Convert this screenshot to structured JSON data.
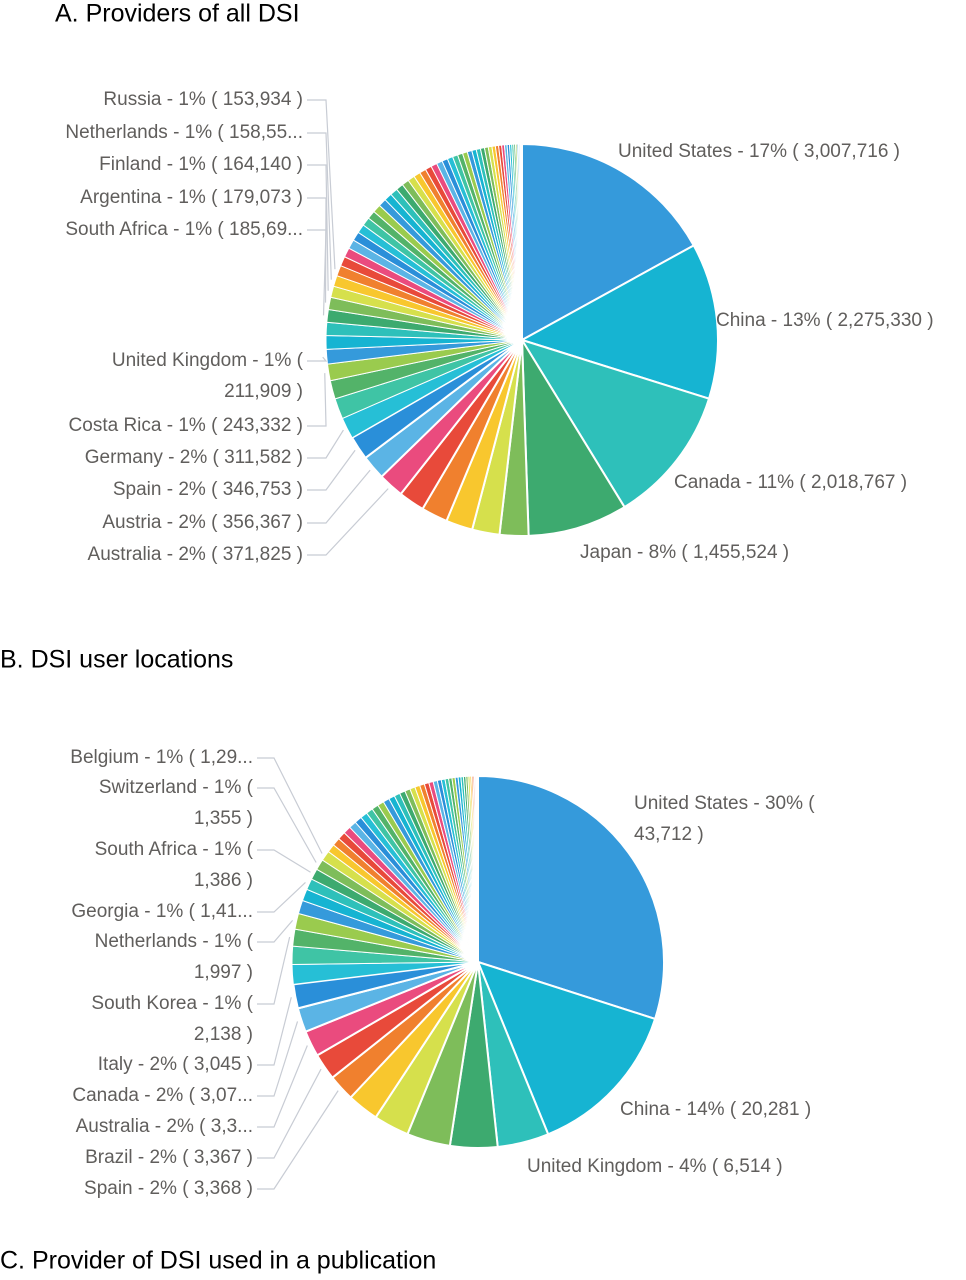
{
  "chart_data": [
    {
      "type": "pie",
      "title": "A. Providers of all DSI",
      "colors": [
        "#359ADB",
        "#16B4D2",
        "#2EC0BA",
        "#3DAA6F",
        "#7EBD5A",
        "#D6E04C",
        "#F8C72E",
        "#F0802E",
        "#E84A3A",
        "#EA4B7E",
        "#5BB4E5",
        "#2A8FD9",
        "#26BFD6",
        "#3FC4A5",
        "#53B369",
        "#9ACB4E"
      ],
      "categories": [
        "United States - 17% ( 3,007,716 )",
        "China - 13% ( 2,275,330 )",
        "Canada - 11% ( 2,018,767 )",
        "Japan - 8% ( 1,455,524 )",
        null,
        null,
        null,
        null,
        null,
        "Australia - 2% ( 371,825 )",
        "Austria - 2% ( 356,367 )",
        "Spain - 2% ( 346,753 )",
        "Germany - 2% ( 311,582 )",
        null,
        null,
        "Costa Rica - 1% ( 243,332 )",
        [
          "United Kingdom - 1% (",
          "211,909 )"
        ],
        null,
        null,
        "South Africa - 1% ( 185,69...",
        "Argentina - 1% ( 179,073 )",
        "Finland - 1% ( 164,140 )",
        "Netherlands - 1% ( 158,55...",
        "Russia - 1% ( 153,934 )",
        null,
        null,
        null,
        null,
        null,
        null,
        null,
        null,
        null,
        null,
        null,
        null,
        null,
        null,
        null,
        null,
        null,
        null,
        null,
        null,
        null,
        null,
        null,
        null,
        null,
        null,
        null,
        null,
        null,
        null,
        null,
        null,
        null,
        null,
        null,
        null,
        null,
        null,
        null,
        null,
        null,
        null,
        null,
        null,
        null
      ],
      "values": [
        3007716,
        2275330,
        2018767,
        1455524,
        420000,
        400000,
        390000,
        385000,
        380000,
        371825,
        356367,
        346753,
        311582,
        300000,
        270000,
        243332,
        211909,
        200000,
        190000,
        185690,
        179073,
        164140,
        158550,
        153934,
        140000,
        137000,
        134000,
        131000,
        128000,
        125000,
        122000,
        119000,
        116000,
        113000,
        110000,
        107000,
        104000,
        101000,
        98000,
        95000,
        92000,
        89000,
        86000,
        83000,
        80000,
        77000,
        74000,
        71000,
        68000,
        65000,
        62000,
        59000,
        56000,
        53000,
        50000,
        47000,
        44000,
        41000,
        38000,
        35000,
        32000,
        29000,
        26000,
        23000,
        20000,
        17000,
        14000,
        11000,
        8000
      ]
    },
    {
      "type": "pie",
      "title": "B. DSI user locations",
      "colors": [
        "#359ADB",
        "#16B4D2",
        "#2EC0BA",
        "#3DAA6F",
        "#7EBD5A",
        "#D6E04C",
        "#F8C72E",
        "#F0802E",
        "#E84A3A",
        "#EA4B7E",
        "#5BB4E5",
        "#2A8FD9",
        "#26BFD6",
        "#3FC4A5",
        "#53B369",
        "#9ACB4E"
      ],
      "categories": [
        [
          "United States - 30% (",
          "43,712 )"
        ],
        "China - 14% ( 20,281 )",
        "United Kingdom - 4% ( 6,514 )",
        null,
        null,
        null,
        null,
        "Spain - 2% ( 3,368 )",
        "Brazil - 2% ( 3,367 )",
        "Australia - 2% ( 3,3...",
        "Canada - 2% ( 3,07...",
        "Italy - 2% ( 3,045 )",
        null,
        null,
        [
          "South Korea - 1% (",
          "2,138 )"
        ],
        [
          "Netherlands - 1% (",
          "1,997 )"
        ],
        null,
        null,
        "Georgia - 1% ( 1,41...",
        [
          "South Africa - 1% (",
          "1,386 )"
        ],
        [
          "Switzerland - 1% (",
          "1,355 )"
        ],
        "Belgium - 1% ( 1,29...",
        null,
        null,
        null,
        null,
        null,
        null,
        null,
        null,
        null,
        null,
        null,
        null,
        null,
        null,
        null,
        null,
        null,
        null,
        null,
        null,
        null,
        null,
        null,
        null,
        null,
        null,
        null,
        null,
        null,
        null,
        null,
        null,
        null,
        null,
        null,
        null,
        null,
        null,
        null,
        null
      ],
      "values": [
        43712,
        20281,
        6514,
        6000,
        5500,
        4500,
        4000,
        3368,
        3367,
        3300,
        3070,
        3045,
        2500,
        2300,
        2138,
        1997,
        1700,
        1500,
        1410,
        1386,
        1355,
        1290,
        1050,
        1024,
        998,
        972,
        946,
        920,
        894,
        868,
        842,
        816,
        790,
        764,
        738,
        712,
        686,
        660,
        634,
        608,
        582,
        556,
        530,
        504,
        478,
        452,
        426,
        400,
        374,
        348,
        322,
        296,
        270,
        244,
        218,
        192,
        166,
        140,
        114,
        88,
        62,
        36
      ]
    },
    {
      "type": "title",
      "title": "C. Provider of DSI used in a publication"
    }
  ]
}
